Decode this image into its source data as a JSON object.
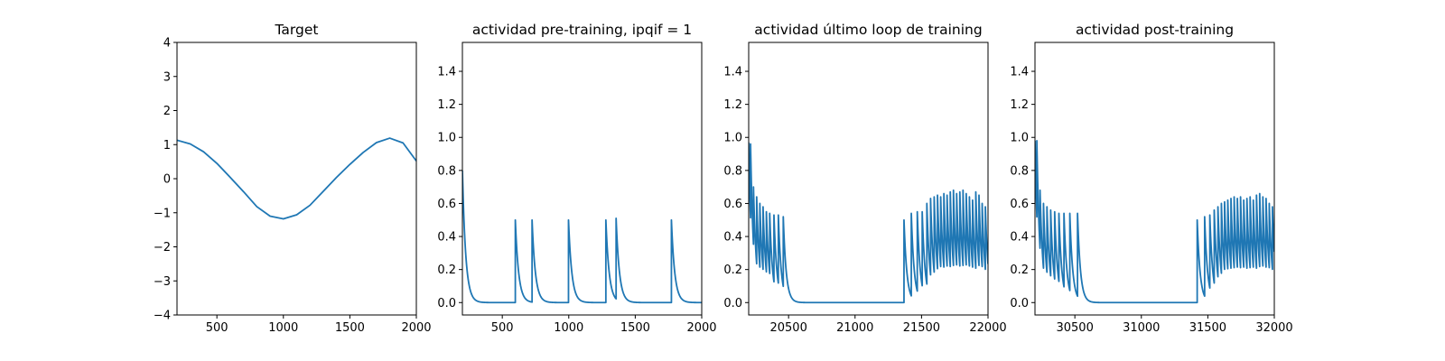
{
  "chart_data": [
    {
      "type": "line",
      "title": "Target",
      "xlim": [
        200,
        2000
      ],
      "ylim": [
        -4,
        4
      ],
      "xticks": [
        500,
        1000,
        1500,
        2000
      ],
      "xtick_labels": [
        "500",
        "1000",
        "1500",
        "2000"
      ],
      "yticks": [
        -4,
        -3,
        -2,
        -1,
        0,
        1,
        2,
        3,
        4
      ],
      "ytick_labels": [
        "−4",
        "−3",
        "−2",
        "−1",
        "0",
        "1",
        "2",
        "3",
        "4"
      ],
      "series_color": "#1f77b4",
      "x": [
        200,
        300,
        400,
        500,
        600,
        700,
        800,
        900,
        1000,
        1100,
        1200,
        1300,
        1400,
        1500,
        1600,
        1700,
        1800,
        1900,
        2000
      ],
      "y": [
        1.13,
        1.02,
        0.79,
        0.45,
        0.04,
        -0.38,
        -0.82,
        -1.1,
        -1.18,
        -1.06,
        -0.78,
        -0.37,
        0.04,
        0.42,
        0.77,
        1.06,
        1.19,
        1.05,
        0.52
      ]
    },
    {
      "type": "line",
      "title": "actividad pre-training, ipqif = 1",
      "xlim": [
        200,
        2000
      ],
      "ylim": [
        -0.075,
        1.575
      ],
      "xticks": [
        500,
        1000,
        1500,
        2000
      ],
      "xtick_labels": [
        "500",
        "1000",
        "1500",
        "2000"
      ],
      "yticks": [
        0,
        0.2,
        0.4,
        0.6,
        0.8,
        1.0,
        1.2,
        1.4
      ],
      "ytick_labels": [
        "0.0",
        "0.2",
        "0.4",
        "0.6",
        "0.8",
        "1.0",
        "1.2",
        "1.4"
      ],
      "series_color": "#1f77b4",
      "initial_value": 0.8,
      "decay_tau": 25,
      "spikes": [
        {
          "x": 598,
          "peak": 0.5
        },
        {
          "x": 724,
          "peak": 0.5
        },
        {
          "x": 998,
          "peak": 0.5
        },
        {
          "x": 1279,
          "peak": 0.5
        },
        {
          "x": 1356,
          "peak": 0.51
        },
        {
          "x": 1772,
          "peak": 0.5
        }
      ]
    },
    {
      "type": "line",
      "title": "actividad último loop de training",
      "xlim": [
        20200,
        22000
      ],
      "ylim": [
        -0.075,
        1.575
      ],
      "xticks": [
        20500,
        21000,
        21500,
        22000
      ],
      "xtick_labels": [
        "20500",
        "21000",
        "21500",
        "22000"
      ],
      "yticks": [
        0,
        0.2,
        0.4,
        0.6,
        0.8,
        1.0,
        1.2,
        1.4
      ],
      "ytick_labels": [
        "0.0",
        "0.2",
        "0.4",
        "0.6",
        "0.8",
        "1.0",
        "1.2",
        "1.4"
      ],
      "series_color": "#1f77b4",
      "initial_value": 0.97,
      "decay_tau": 22,
      "spikes": [
        {
          "x": 20214,
          "peak": 0.96
        },
        {
          "x": 20236,
          "peak": 0.7
        },
        {
          "x": 20260,
          "peak": 0.64
        },
        {
          "x": 20284,
          "peak": 0.6
        },
        {
          "x": 20308,
          "peak": 0.58
        },
        {
          "x": 20333,
          "peak": 0.55
        },
        {
          "x": 20358,
          "peak": 0.54
        },
        {
          "x": 20390,
          "peak": 0.53
        },
        {
          "x": 20423,
          "peak": 0.53
        },
        {
          "x": 20460,
          "peak": 0.52
        },
        {
          "x": 21368,
          "peak": 0.5
        },
        {
          "x": 21423,
          "peak": 0.54
        },
        {
          "x": 21468,
          "peak": 0.55
        },
        {
          "x": 21505,
          "peak": 0.55
        },
        {
          "x": 21540,
          "peak": 0.6
        },
        {
          "x": 21568,
          "peak": 0.63
        },
        {
          "x": 21595,
          "peak": 0.64
        },
        {
          "x": 21620,
          "peak": 0.65
        },
        {
          "x": 21644,
          "peak": 0.64
        },
        {
          "x": 21668,
          "peak": 0.66
        },
        {
          "x": 21692,
          "peak": 0.65
        },
        {
          "x": 21716,
          "peak": 0.67
        },
        {
          "x": 21740,
          "peak": 0.68
        },
        {
          "x": 21764,
          "peak": 0.66
        },
        {
          "x": 21788,
          "peak": 0.67
        },
        {
          "x": 21812,
          "peak": 0.68
        },
        {
          "x": 21836,
          "peak": 0.66
        },
        {
          "x": 21860,
          "peak": 0.64
        },
        {
          "x": 21884,
          "peak": 0.62
        },
        {
          "x": 21908,
          "peak": 0.67
        },
        {
          "x": 21932,
          "peak": 0.65
        },
        {
          "x": 21956,
          "peak": 0.6
        },
        {
          "x": 21980,
          "peak": 0.58
        }
      ]
    },
    {
      "type": "line",
      "title": "actividad post-training",
      "xlim": [
        30200,
        32000
      ],
      "ylim": [
        -0.075,
        1.575
      ],
      "xticks": [
        30500,
        31000,
        31500,
        32000
      ],
      "xtick_labels": [
        "30500",
        "31000",
        "31500",
        "32000"
      ],
      "yticks": [
        0,
        0.2,
        0.4,
        0.6,
        0.8,
        1.0,
        1.2,
        1.4
      ],
      "ytick_labels": [
        "0.0",
        "0.2",
        "0.4",
        "0.6",
        "0.8",
        "1.0",
        "1.2",
        "1.4"
      ],
      "series_color": "#1f77b4",
      "initial_value": 0.98,
      "decay_tau": 22,
      "spikes": [
        {
          "x": 30214,
          "peak": 0.98
        },
        {
          "x": 30238,
          "peak": 0.68
        },
        {
          "x": 30264,
          "peak": 0.6
        },
        {
          "x": 30290,
          "peak": 0.58
        },
        {
          "x": 30318,
          "peak": 0.56
        },
        {
          "x": 30348,
          "peak": 0.55
        },
        {
          "x": 30380,
          "peak": 0.54
        },
        {
          "x": 30418,
          "peak": 0.54
        },
        {
          "x": 30462,
          "peak": 0.54
        },
        {
          "x": 30520,
          "peak": 0.54
        },
        {
          "x": 31420,
          "peak": 0.5
        },
        {
          "x": 31476,
          "peak": 0.52
        },
        {
          "x": 31515,
          "peak": 0.53
        },
        {
          "x": 31548,
          "peak": 0.56
        },
        {
          "x": 31576,
          "peak": 0.58
        },
        {
          "x": 31602,
          "peak": 0.6
        },
        {
          "x": 31626,
          "peak": 0.61
        },
        {
          "x": 31650,
          "peak": 0.62
        },
        {
          "x": 31674,
          "peak": 0.63
        },
        {
          "x": 31698,
          "peak": 0.64
        },
        {
          "x": 31722,
          "peak": 0.63
        },
        {
          "x": 31746,
          "peak": 0.64
        },
        {
          "x": 31770,
          "peak": 0.62
        },
        {
          "x": 31794,
          "peak": 0.63
        },
        {
          "x": 31818,
          "peak": 0.64
        },
        {
          "x": 31842,
          "peak": 0.62
        },
        {
          "x": 31866,
          "peak": 0.65
        },
        {
          "x": 31890,
          "peak": 0.66
        },
        {
          "x": 31914,
          "peak": 0.64
        },
        {
          "x": 31938,
          "peak": 0.63
        },
        {
          "x": 31962,
          "peak": 0.6
        },
        {
          "x": 31986,
          "peak": 0.58
        }
      ]
    }
  ]
}
